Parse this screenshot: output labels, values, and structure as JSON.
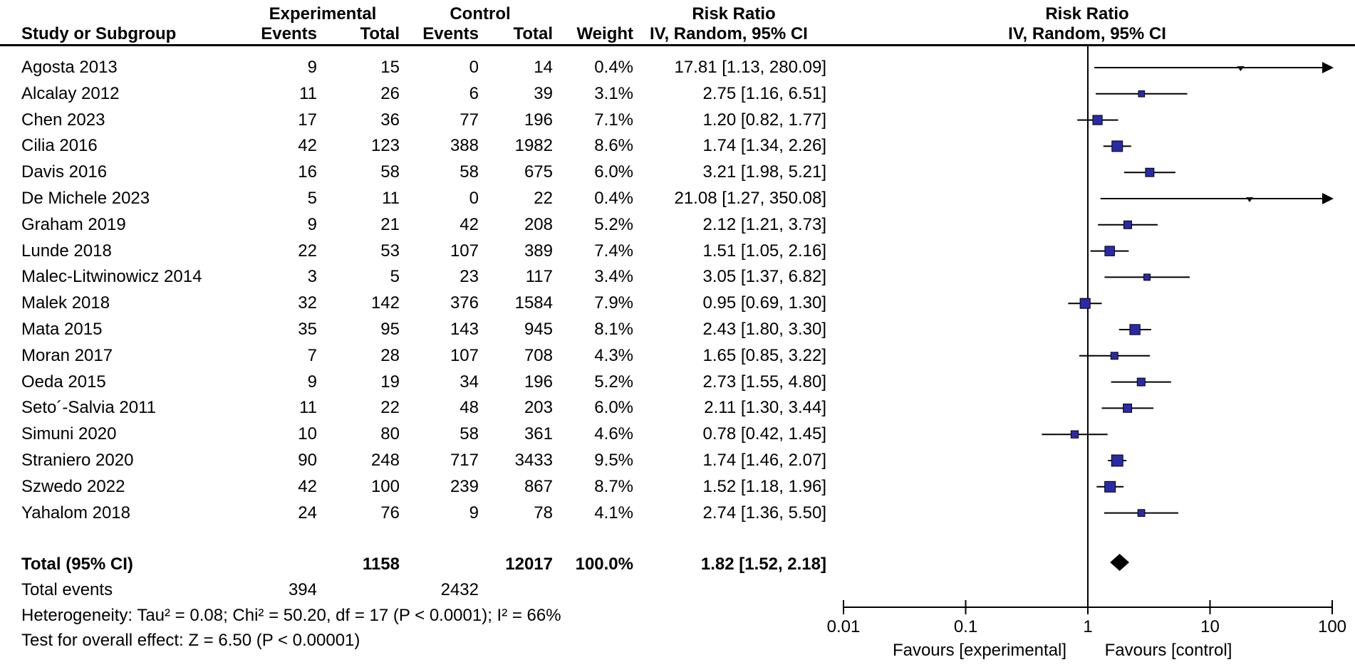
{
  "header": {
    "group1": "Experimental",
    "group2": "Control",
    "effect_title": "Risk Ratio",
    "effect_method": "IV, Random, 95% CI",
    "plot_title": "Risk Ratio",
    "plot_method": "IV, Random, 95% CI",
    "col_study": "Study or Subgroup",
    "col_events": "Events",
    "col_total": "Total",
    "col_events2": "Events",
    "col_total2": "Total",
    "col_weight": "Weight"
  },
  "chart_data": {
    "type": "scatter",
    "title": "Forest plot, Risk Ratio IV Random 95% CI",
    "x_scale": "log10",
    "x_ticks": [
      "0.01",
      "0.1",
      "1",
      "10",
      "100"
    ],
    "xlim": [
      0.01,
      100
    ],
    "favours_left": "Favours [experimental]",
    "favours_right": "Favours [control]",
    "marker_color": "#2a2aa8",
    "line_color": "#000000",
    "studies": [
      {
        "name": "Agosta 2013",
        "e1": "9",
        "t1": "15",
        "e2": "0",
        "t2": "14",
        "weight": "0.4%",
        "ci_text": "17.81 [1.13, 280.09]",
        "rr": 17.81,
        "lo": 1.13,
        "hi": 280.09
      },
      {
        "name": "Alcalay 2012",
        "e1": "11",
        "t1": "26",
        "e2": "6",
        "t2": "39",
        "weight": "3.1%",
        "ci_text": "2.75 [1.16, 6.51]",
        "rr": 2.75,
        "lo": 1.16,
        "hi": 6.51
      },
      {
        "name": "Chen 2023",
        "e1": "17",
        "t1": "36",
        "e2": "77",
        "t2": "196",
        "weight": "7.1%",
        "ci_text": "1.20 [0.82, 1.77]",
        "rr": 1.2,
        "lo": 0.82,
        "hi": 1.77
      },
      {
        "name": "Cilia 2016",
        "e1": "42",
        "t1": "123",
        "e2": "388",
        "t2": "1982",
        "weight": "8.6%",
        "ci_text": "1.74 [1.34, 2.26]",
        "rr": 1.74,
        "lo": 1.34,
        "hi": 2.26
      },
      {
        "name": "Davis 2016",
        "e1": "16",
        "t1": "58",
        "e2": "58",
        "t2": "675",
        "weight": "6.0%",
        "ci_text": "3.21 [1.98, 5.21]",
        "rr": 3.21,
        "lo": 1.98,
        "hi": 5.21
      },
      {
        "name": "De Michele 2023",
        "e1": "5",
        "t1": "11",
        "e2": "0",
        "t2": "22",
        "weight": "0.4%",
        "ci_text": "21.08 [1.27, 350.08]",
        "rr": 21.08,
        "lo": 1.27,
        "hi": 350.08
      },
      {
        "name": "Graham 2019",
        "e1": "9",
        "t1": "21",
        "e2": "42",
        "t2": "208",
        "weight": "5.2%",
        "ci_text": "2.12 [1.21, 3.73]",
        "rr": 2.12,
        "lo": 1.21,
        "hi": 3.73
      },
      {
        "name": "Lunde 2018",
        "e1": "22",
        "t1": "53",
        "e2": "107",
        "t2": "389",
        "weight": "7.4%",
        "ci_text": "1.51 [1.05, 2.16]",
        "rr": 1.51,
        "lo": 1.05,
        "hi": 2.16
      },
      {
        "name": "Malec-Litwinowicz 2014",
        "e1": "3",
        "t1": "5",
        "e2": "23",
        "t2": "117",
        "weight": "3.4%",
        "ci_text": "3.05 [1.37, 6.82]",
        "rr": 3.05,
        "lo": 1.37,
        "hi": 6.82
      },
      {
        "name": "Malek 2018",
        "e1": "32",
        "t1": "142",
        "e2": "376",
        "t2": "1584",
        "weight": "7.9%",
        "ci_text": "0.95 [0.69, 1.30]",
        "rr": 0.95,
        "lo": 0.69,
        "hi": 1.3
      },
      {
        "name": "Mata 2015",
        "e1": "35",
        "t1": "95",
        "e2": "143",
        "t2": "945",
        "weight": "8.1%",
        "ci_text": "2.43 [1.80, 3.30]",
        "rr": 2.43,
        "lo": 1.8,
        "hi": 3.3
      },
      {
        "name": "Moran 2017",
        "e1": "7",
        "t1": "28",
        "e2": "107",
        "t2": "708",
        "weight": "4.3%",
        "ci_text": "1.65 [0.85, 3.22]",
        "rr": 1.65,
        "lo": 0.85,
        "hi": 3.22
      },
      {
        "name": "Oeda 2015",
        "e1": "9",
        "t1": "19",
        "e2": "34",
        "t2": "196",
        "weight": "5.2%",
        "ci_text": "2.73 [1.55, 4.80]",
        "rr": 2.73,
        "lo": 1.55,
        "hi": 4.8
      },
      {
        "name": "Seto´-Salvia 2011",
        "e1": "11",
        "t1": "22",
        "e2": "48",
        "t2": "203",
        "weight": "6.0%",
        "ci_text": "2.11 [1.30, 3.44]",
        "rr": 2.11,
        "lo": 1.3,
        "hi": 3.44
      },
      {
        "name": "Simuni 2020",
        "e1": "10",
        "t1": "80",
        "e2": "58",
        "t2": "361",
        "weight": "4.6%",
        "ci_text": "0.78 [0.42, 1.45]",
        "rr": 0.78,
        "lo": 0.42,
        "hi": 1.45
      },
      {
        "name": "Straniero 2020",
        "e1": "90",
        "t1": "248",
        "e2": "717",
        "t2": "3433",
        "weight": "9.5%",
        "ci_text": "1.74 [1.46, 2.07]",
        "rr": 1.74,
        "lo": 1.46,
        "hi": 2.07
      },
      {
        "name": "Szwedo 2022",
        "e1": "42",
        "t1": "100",
        "e2": "239",
        "t2": "867",
        "weight": "8.7%",
        "ci_text": "1.52 [1.18, 1.96]",
        "rr": 1.52,
        "lo": 1.18,
        "hi": 1.96
      },
      {
        "name": "Yahalom 2018",
        "e1": "24",
        "t1": "76",
        "e2": "9",
        "t2": "78",
        "weight": "4.1%",
        "ci_text": "2.74 [1.36, 5.50]",
        "rr": 2.74,
        "lo": 1.36,
        "hi": 5.5
      }
    ],
    "total": {
      "label": "Total (95% CI)",
      "t1": "1158",
      "t2": "12017",
      "weight": "100.0%",
      "ci_text": "1.82 [1.52, 2.18]",
      "rr": 1.82,
      "lo": 1.52,
      "hi": 2.18
    },
    "total_events": {
      "label": "Total events",
      "e1": "394",
      "e2": "2432"
    },
    "heterogeneity": "Heterogeneity: Tau² = 0.08; Chi² = 50.20, df = 17 (P < 0.0001); I² = 66%",
    "overall_effect": "Test for overall effect: Z = 6.50 (P < 0.00001)"
  }
}
